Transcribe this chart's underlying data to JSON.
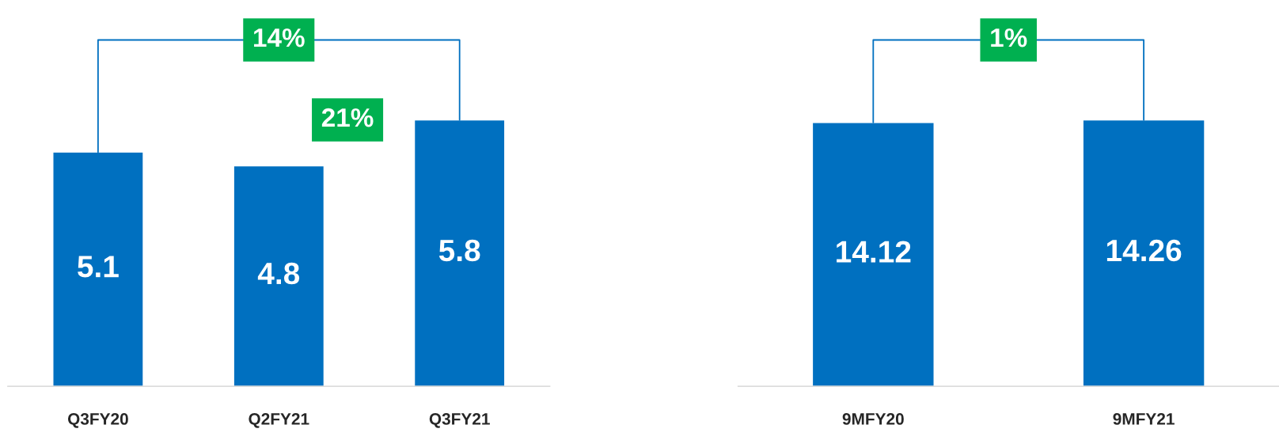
{
  "chart_data": [
    {
      "type": "bar",
      "categories": [
        "Q3FY20",
        "Q2FY21",
        "Q3FY21"
      ],
      "values": [
        5.1,
        4.8,
        5.8
      ],
      "color": "#0070c0",
      "data_labels": true,
      "annotations": [
        "14%",
        "21%"
      ]
    },
    {
      "type": "bar",
      "categories": [
        "9MFY20",
        "9MFY21"
      ],
      "values": [
        14.12,
        14.26
      ],
      "color": "#0070c0",
      "data_labels": true,
      "annotations": [
        "1%"
      ]
    }
  ]
}
